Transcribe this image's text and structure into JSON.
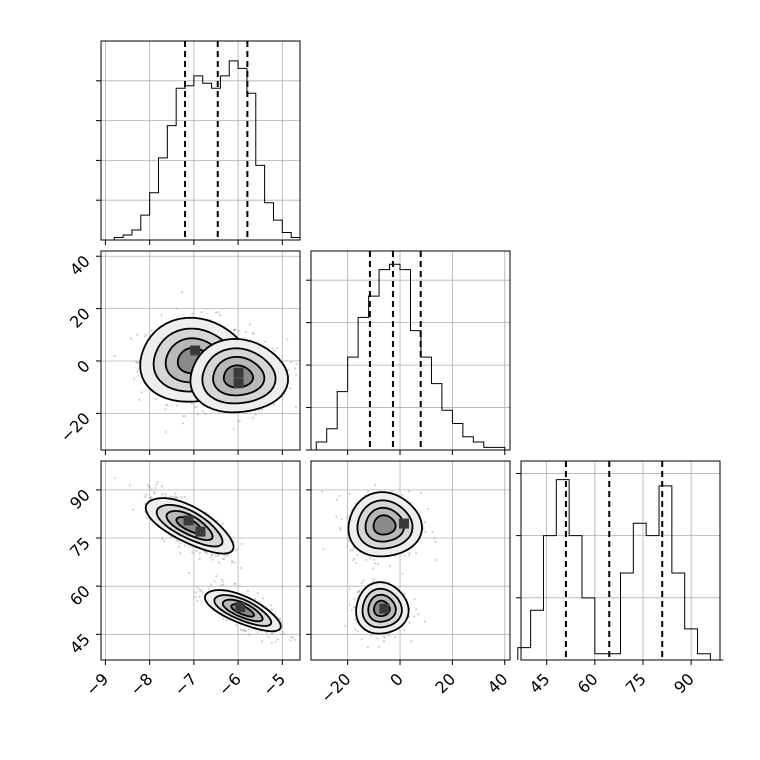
{
  "chart_data": [
    {
      "panel": "hist-p1",
      "type": "bar",
      "x": [
        -8.9,
        -8.7,
        -8.5,
        -8.3,
        -8.1,
        -7.9,
        -7.7,
        -7.5,
        -7.3,
        -7.1,
        -6.9,
        -6.7,
        -6.5,
        -6.3,
        -6.1,
        -5.9,
        -5.7,
        -5.5,
        -5.3,
        -5.1,
        -4.9,
        -4.7
      ],
      "values": [
        0,
        1,
        2,
        4,
        10,
        19,
        33,
        46,
        61,
        62,
        66,
        63,
        61,
        66,
        72,
        69,
        59,
        30,
        15,
        8,
        3,
        1
      ],
      "quantiles": [
        -7.2,
        -6.46,
        -5.79
      ],
      "xlim": [
        -9.1,
        -4.6
      ],
      "ylim": [
        0,
        80
      ],
      "grid": true
    },
    {
      "panel": "hist-p2",
      "type": "bar",
      "x": [
        -34,
        -30,
        -26,
        -22,
        -18,
        -14,
        -10,
        -6,
        -2,
        2,
        6,
        10,
        14,
        18,
        22,
        26,
        30,
        34,
        38
      ],
      "values": [
        0,
        3,
        8,
        22,
        35,
        50,
        58,
        68,
        70,
        68,
        45,
        35,
        25,
        15,
        10,
        5,
        3,
        1,
        1
      ],
      "quantiles": [
        -11.5,
        -2.7,
        7.9
      ],
      "xlim": [
        -34,
        42
      ],
      "ylim": [
        0,
        75
      ],
      "grid": true
    },
    {
      "panel": "hist-p3",
      "type": "bar",
      "x": [
        38,
        42,
        46,
        50,
        54,
        58,
        62,
        66,
        70,
        74,
        78,
        82,
        86,
        90,
        94,
        98
      ],
      "values": [
        2,
        8,
        20,
        29,
        20,
        10,
        1,
        1,
        14,
        22,
        20,
        28,
        14,
        5,
        1,
        0
      ],
      "quantiles": [
        51,
        64.5,
        81
      ],
      "xlim": [
        37,
        99
      ],
      "ylim": [
        0,
        32
      ],
      "grid": true
    },
    {
      "panel": "scatter-p1-p2",
      "type": "scatter",
      "xlim": [
        -9.1,
        -4.6
      ],
      "ylim": [
        -34,
        42
      ],
      "clusters": [
        {
          "mean": [
            -7.0,
            0.0
          ],
          "sd": [
            0.62,
            8.0
          ],
          "n": 380
        },
        {
          "mean": [
            -6.0,
            -6.0
          ],
          "sd": [
            0.55,
            7.0
          ],
          "n": 380
        }
      ],
      "density_peaks": [
        {
          "x": -6.97,
          "y": 4.0
        },
        {
          "x": -5.99,
          "y": -4.5
        },
        {
          "x": -5.99,
          "y": -8.5
        }
      ],
      "grid": true
    },
    {
      "panel": "scatter-p1-p3",
      "type": "scatter",
      "xlim": [
        -9.1,
        -4.6
      ],
      "ylim": [
        37,
        99
      ],
      "clusters": [
        {
          "mean": [
            -7.1,
            79.0
          ],
          "sd": [
            0.45,
            5.0
          ],
          "corr": -0.75,
          "n": 380
        },
        {
          "mean": [
            -5.9,
            52.5
          ],
          "sd": [
            0.4,
            3.8
          ],
          "corr": -0.72,
          "n": 380
        }
      ],
      "density_peaks": [
        {
          "x": -7.12,
          "y": 80.5
        },
        {
          "x": -6.85,
          "y": 77.0
        },
        {
          "x": -5.95,
          "y": 53.5
        }
      ],
      "grid": true
    },
    {
      "panel": "scatter-p2-p3",
      "type": "scatter",
      "xlim": [
        -34,
        42
      ],
      "ylim": [
        37,
        99
      ],
      "clusters": [
        {
          "mean": [
            -6.0,
            79.0
          ],
          "sd": [
            7.0,
            5.0
          ],
          "n": 380
        },
        {
          "mean": [
            -7.0,
            53.0
          ],
          "sd": [
            5.0,
            4.0
          ],
          "n": 380
        }
      ],
      "density_peaks": [
        {
          "x": 1.5,
          "y": 79.5
        },
        {
          "x": -6.0,
          "y": 53.0
        }
      ],
      "grid": true
    }
  ],
  "tick_labels": {
    "p1": [
      "−9",
      "−8",
      "−7",
      "−6",
      "−5"
    ],
    "p2": [
      "−20",
      "0",
      "20",
      "40"
    ],
    "p3": [
      "45",
      "60",
      "75",
      "90"
    ]
  },
  "tick_values": {
    "p1": [
      -9,
      -8,
      -7,
      -6,
      -5
    ],
    "p2": [
      -20,
      0,
      20,
      40
    ],
    "p3": [
      45,
      60,
      75,
      90
    ]
  },
  "colors": {
    "frame": "#000000",
    "grid": "#b0b0b0",
    "points": "#7a7a7a",
    "density_low": "#e6e6e6",
    "density_high": "#000000"
  }
}
